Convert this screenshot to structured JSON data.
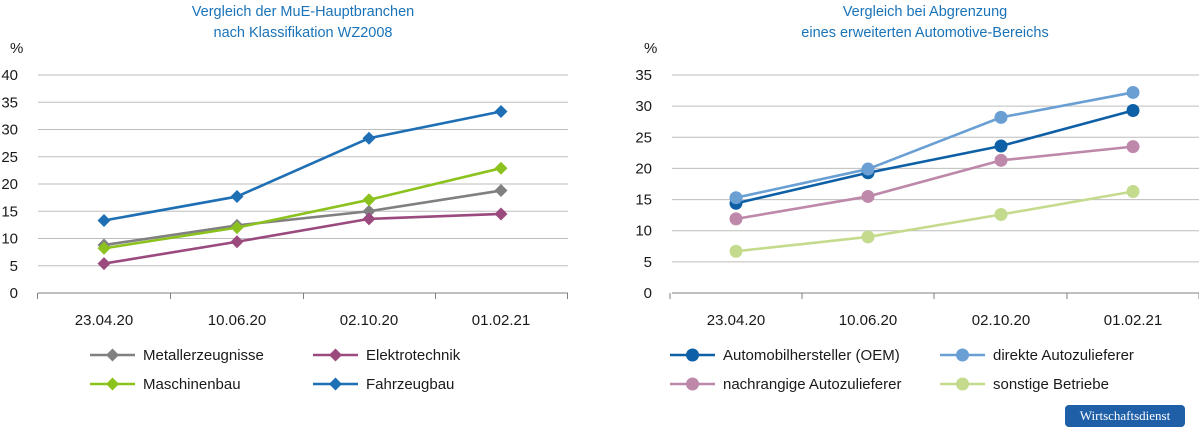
{
  "brand": "Wirtschaftsdienst",
  "chart_data": [
    {
      "type": "line",
      "title": "Vergleich der MuE-Hauptbranchen\nnach Klassifikation WZ2008",
      "ylabel": "%",
      "ylim": [
        0,
        40
      ],
      "yticks": [
        0,
        5,
        10,
        15,
        20,
        25,
        30,
        35,
        40
      ],
      "categories": [
        "23.04.20",
        "10.06.20",
        "02.10.20",
        "01.02.21"
      ],
      "marker": "diamond",
      "legend_position": "bottom",
      "series": [
        {
          "name": "Metallerzeugnisse",
          "color": "#808080",
          "values": [
            8.8,
            12.4,
            15.0,
            18.8
          ]
        },
        {
          "name": "Elektrotechnik",
          "color": "#9b4a7e",
          "values": [
            5.4,
            9.4,
            13.6,
            14.5
          ]
        },
        {
          "name": "Maschinenbau",
          "color": "#8cc21e",
          "values": [
            8.2,
            12.0,
            17.1,
            22.9
          ]
        },
        {
          "name": "Fahrzeugbau",
          "color": "#1e6fb4",
          "values": [
            13.3,
            17.7,
            28.4,
            33.3
          ]
        }
      ]
    },
    {
      "type": "line",
      "title": "Vergleich bei Abgrenzung\neines erweiterten Automotive-Bereichs",
      "ylabel": "%",
      "ylim": [
        0,
        35
      ],
      "yticks": [
        0,
        5,
        10,
        15,
        20,
        25,
        30,
        35
      ],
      "categories": [
        "23.04.20",
        "10.06.20",
        "02.10.20",
        "01.02.21"
      ],
      "marker": "circle",
      "legend_position": "bottom",
      "series": [
        {
          "name": "Automobilhersteller (OEM)",
          "color": "#0d5fa6",
          "values": [
            14.4,
            19.3,
            23.6,
            29.3
          ]
        },
        {
          "name": "direkte Autozulieferer",
          "color": "#6a9fd4",
          "values": [
            15.3,
            19.9,
            28.2,
            32.2
          ]
        },
        {
          "name": "nachrangige Autozulieferer",
          "color": "#be88aa",
          "values": [
            11.9,
            15.5,
            21.3,
            23.5
          ]
        },
        {
          "name": "sonstige Betriebe",
          "color": "#c4db8e",
          "values": [
            6.7,
            9.0,
            12.6,
            16.3
          ]
        }
      ]
    }
  ]
}
